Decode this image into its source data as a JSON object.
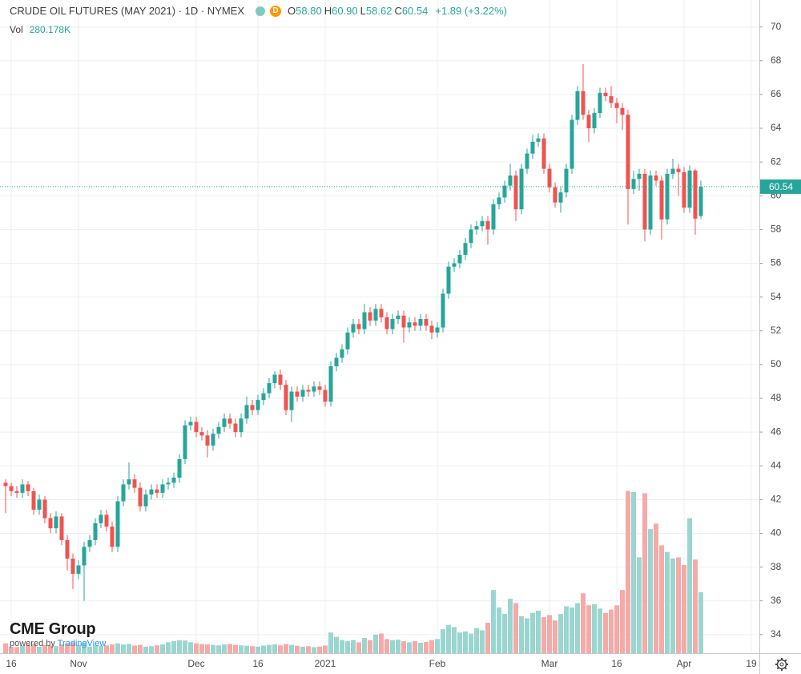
{
  "chart_data": {
    "type": "candlestick",
    "title": "CRUDE OIL FUTURES (MAY 2021) · 1D · NYMEX",
    "interval_badge": "D",
    "legend": [
      {
        "prefix": "O",
        "text": "58.80"
      },
      {
        "prefix": "H",
        "text": "60.90"
      },
      {
        "prefix": "L",
        "text": "58.62"
      },
      {
        "prefix": "C",
        "text": "60.54"
      }
    ],
    "change_label": "+1.89 (+3.22%)",
    "last_price_label": "60.54",
    "logo": {
      "name": "CME Group",
      "powered_by": "powered by",
      "provider": "TradingView"
    },
    "up_color": "#26a69a",
    "down_color": "#ef5350",
    "volume_up_color": "#9ad6d0",
    "volume_down_color": "#f5aaa8",
    "grid": true,
    "ylim": [
      32.9,
      71.6
    ],
    "yticks": [
      34,
      36,
      38,
      40,
      42,
      44,
      46,
      48,
      50,
      52,
      54,
      56,
      58,
      60,
      62,
      64,
      66,
      68,
      70
    ],
    "y2lim": [
      0,
      3000000
    ],
    "categories": [
      null,
      "16",
      null,
      null,
      null,
      null,
      null,
      null,
      null,
      null,
      null,
      null,
      null,
      "Nov",
      null,
      null,
      null,
      null,
      null,
      null,
      null,
      null,
      null,
      null,
      null,
      null,
      null,
      null,
      null,
      null,
      null,
      null,
      null,
      null,
      "Dec",
      null,
      null,
      null,
      null,
      null,
      null,
      null,
      null,
      null,
      null,
      "16",
      null,
      null,
      null,
      null,
      null,
      null,
      null,
      null,
      null,
      null,
      null,
      "2021",
      null,
      null,
      null,
      null,
      null,
      null,
      null,
      null,
      null,
      null,
      null,
      null,
      null,
      null,
      null,
      null,
      null,
      null,
      null,
      "Feb",
      null,
      null,
      null,
      null,
      null,
      null,
      null,
      null,
      null,
      null,
      null,
      null,
      null,
      null,
      null,
      null,
      null,
      null,
      null,
      "Mar",
      null,
      null,
      null,
      null,
      null,
      null,
      null,
      null,
      null,
      null,
      null,
      "16",
      null,
      null,
      null,
      null,
      null,
      null,
      null,
      null,
      null,
      null,
      null,
      "Apr",
      null,
      null,
      null,
      null,
      null,
      null,
      null,
      null,
      null,
      null,
      null,
      "19"
    ],
    "open": [
      43.0,
      42.8,
      42.5,
      42.4,
      42.9,
      42.5,
      41.4,
      42.0,
      40.9,
      40.3,
      41.0,
      39.6,
      38.5,
      37.6,
      38.1,
      39.2,
      39.6,
      40.6,
      41.1,
      40.4,
      39.2,
      41.9,
      42.9,
      43.2,
      42.7,
      41.6,
      42.3,
      42.6,
      42.4,
      42.9,
      43.0,
      43.3,
      44.4,
      46.4,
      46.6,
      46.0,
      45.8,
      45.2,
      45.9,
      46.3,
      46.8,
      46.5,
      46.0,
      46.8,
      47.6,
      47.3,
      47.9,
      48.3,
      48.9,
      49.4,
      48.8,
      47.3,
      48.4,
      48.1,
      48.5,
      48.4,
      48.7,
      48.5,
      47.8,
      49.9,
      50.4,
      50.9,
      51.9,
      52.4,
      52.1,
      53.1,
      52.6,
      53.3,
      52.8,
      52.1,
      52.7,
      52.9,
      52.2,
      52.5,
      52.3,
      52.7,
      52.3,
      51.9,
      52.2,
      54.2,
      55.8,
      56.0,
      56.5,
      57.2,
      58.0,
      58.2,
      58.5,
      58.0,
      59.5,
      59.9,
      60.6,
      61.2,
      59.2,
      61.6,
      62.5,
      63.2,
      63.4,
      61.6,
      60.5,
      59.6,
      60.2,
      61.6,
      64.5,
      66.2,
      64.8,
      64.0,
      64.9,
      66.1,
      65.9,
      65.5,
      65.2,
      64.8,
      60.4,
      61.0,
      61.3,
      58.0,
      61.2,
      60.9,
      58.6,
      61.3,
      61.6,
      61.4,
      59.3,
      61.5,
      58.8,
      null,
      null,
      null,
      null,
      null,
      null,
      null,
      null,
      null
    ],
    "high": [
      43.2,
      43.0,
      42.8,
      43.2,
      43.1,
      42.7,
      42.3,
      42.2,
      41.2,
      41.3,
      41.2,
      39.9,
      38.8,
      38.4,
      39.5,
      39.9,
      40.9,
      41.4,
      41.4,
      40.7,
      42.2,
      43.2,
      44.2,
      43.5,
      43.0,
      42.6,
      42.9,
      42.9,
      43.2,
      43.3,
      43.6,
      44.7,
      46.7,
      46.9,
      46.9,
      46.3,
      46.1,
      46.2,
      46.6,
      47.1,
      47.1,
      46.8,
      47.1,
      48.1,
      47.9,
      48.2,
      48.6,
      49.2,
      49.6,
      49.7,
      49.1,
      48.7,
      48.7,
      48.8,
      48.8,
      49.0,
      49.0,
      48.8,
      50.2,
      50.7,
      51.2,
      52.2,
      52.7,
      52.7,
      53.6,
      53.4,
      53.6,
      53.6,
      53.1,
      53.0,
      53.2,
      53.2,
      52.8,
      52.8,
      53.0,
      53.0,
      52.6,
      52.5,
      54.5,
      56.1,
      56.3,
      56.8,
      57.5,
      58.3,
      58.5,
      58.8,
      58.8,
      59.8,
      60.2,
      60.9,
      61.9,
      61.5,
      61.9,
      62.8,
      63.6,
      63.7,
      63.7,
      61.9,
      60.8,
      60.5,
      61.9,
      64.8,
      66.5,
      67.8,
      65.1,
      65.2,
      66.4,
      66.4,
      66.5,
      65.8,
      65.5,
      65.1,
      61.5,
      61.6,
      61.6,
      61.5,
      61.5,
      61.2,
      61.6,
      62.2,
      61.9,
      61.7,
      61.8,
      61.6,
      60.9,
      null,
      null,
      null,
      null,
      null,
      null,
      null,
      null,
      null
    ],
    "low": [
      41.2,
      42.2,
      42.1,
      42.1,
      42.2,
      41.1,
      41.1,
      40.6,
      40.0,
      40.0,
      39.3,
      37.8,
      36.7,
      37.3,
      36.0,
      38.9,
      39.3,
      40.3,
      40.1,
      38.9,
      38.9,
      41.6,
      42.6,
      42.4,
      41.3,
      41.3,
      42.0,
      42.1,
      42.1,
      42.6,
      42.7,
      43.0,
      44.1,
      46.1,
      45.7,
      45.5,
      44.5,
      44.9,
      45.6,
      46.0,
      46.2,
      45.7,
      45.7,
      46.5,
      47.0,
      47.0,
      47.6,
      48.0,
      48.6,
      48.5,
      47.0,
      46.6,
      47.8,
      47.8,
      48.1,
      48.1,
      48.2,
      47.5,
      47.5,
      49.6,
      50.1,
      50.6,
      51.6,
      51.8,
      51.8,
      52.3,
      52.3,
      52.5,
      51.8,
      51.8,
      52.4,
      51.3,
      51.9,
      52.0,
      52.0,
      52.0,
      51.5,
      51.6,
      51.9,
      53.9,
      55.5,
      55.7,
      56.2,
      56.9,
      57.7,
      57.9,
      57.1,
      57.7,
      59.2,
      59.6,
      60.3,
      58.5,
      58.9,
      61.3,
      62.2,
      62.9,
      61.3,
      60.2,
      59.3,
      59.0,
      59.9,
      61.3,
      64.2,
      64.5,
      63.2,
      63.7,
      64.6,
      65.6,
      65.2,
      64.3,
      63.9,
      58.3,
      60.1,
      60.3,
      57.3,
      57.7,
      60.6,
      57.4,
      58.3,
      61.0,
      60.0,
      59.0,
      59.0,
      57.7,
      58.62,
      null,
      null,
      null,
      null,
      null,
      null,
      null,
      null,
      null
    ],
    "close": [
      42.8,
      42.5,
      42.4,
      42.9,
      42.5,
      41.4,
      42.0,
      40.9,
      40.3,
      41.0,
      39.6,
      38.5,
      37.6,
      38.1,
      39.2,
      39.6,
      40.6,
      41.1,
      40.4,
      39.2,
      41.9,
      42.9,
      43.2,
      42.7,
      41.6,
      42.3,
      42.6,
      42.4,
      42.9,
      43.0,
      43.3,
      44.4,
      46.4,
      46.6,
      46.0,
      45.8,
      45.2,
      45.9,
      46.3,
      46.8,
      46.5,
      46.0,
      46.8,
      47.6,
      47.3,
      47.9,
      48.3,
      48.9,
      49.4,
      48.8,
      47.3,
      48.4,
      48.1,
      48.5,
      48.4,
      48.7,
      48.5,
      47.8,
      49.9,
      50.4,
      50.9,
      51.9,
      52.4,
      52.1,
      53.1,
      52.6,
      53.3,
      52.8,
      52.1,
      52.7,
      52.9,
      52.2,
      52.5,
      52.3,
      52.7,
      52.3,
      51.9,
      52.2,
      54.2,
      55.8,
      56.0,
      56.5,
      57.2,
      58.0,
      58.2,
      58.5,
      58.0,
      59.5,
      59.9,
      60.6,
      61.2,
      59.2,
      61.6,
      62.5,
      63.2,
      63.4,
      61.6,
      60.5,
      59.6,
      60.2,
      61.6,
      64.5,
      66.2,
      64.8,
      64.0,
      64.9,
      66.1,
      65.9,
      65.5,
      65.2,
      64.8,
      60.4,
      61.0,
      61.3,
      58.0,
      61.2,
      60.9,
      58.6,
      61.3,
      61.6,
      61.4,
      59.3,
      61.5,
      58.65,
      60.54,
      null,
      null,
      null,
      null,
      null,
      null,
      null,
      null,
      null
    ],
    "volume": {
      "name": "Vol",
      "axis": "y2",
      "last_value_label": "280.178K",
      "values": [
        45000,
        30000,
        28000,
        35000,
        40000,
        42000,
        30000,
        38000,
        36000,
        32000,
        40000,
        45000,
        50000,
        38000,
        48000,
        30000,
        35000,
        33000,
        36000,
        40000,
        45000,
        40000,
        42000,
        35000,
        38000,
        30000,
        32000,
        36000,
        40000,
        50000,
        55000,
        60000,
        58000,
        50000,
        45000,
        42000,
        40000,
        38000,
        36000,
        40000,
        42000,
        38000,
        36000,
        34000,
        32000,
        30000,
        35000,
        38000,
        40000,
        36000,
        42000,
        38000,
        34000,
        30000,
        32000,
        28000,
        30000,
        35000,
        95000,
        75000,
        60000,
        55000,
        60000,
        50000,
        70000,
        60000,
        85000,
        90000,
        65000,
        60000,
        62000,
        55000,
        50000,
        55000,
        48000,
        52000,
        60000,
        65000,
        110000,
        130000,
        120000,
        95000,
        100000,
        90000,
        115000,
        105000,
        140000,
        290000,
        210000,
        180000,
        250000,
        230000,
        170000,
        160000,
        185000,
        195000,
        165000,
        175000,
        150000,
        180000,
        215000,
        210000,
        230000,
        275000,
        220000,
        225000,
        205000,
        185000,
        200000,
        220000,
        290000,
        745000,
        740000,
        440000,
        735000,
        570000,
        595000,
        495000,
        465000,
        435000,
        440000,
        405000,
        620000,
        430000,
        280178,
        null,
        null,
        null,
        null,
        null,
        null,
        null,
        null,
        null
      ]
    }
  }
}
